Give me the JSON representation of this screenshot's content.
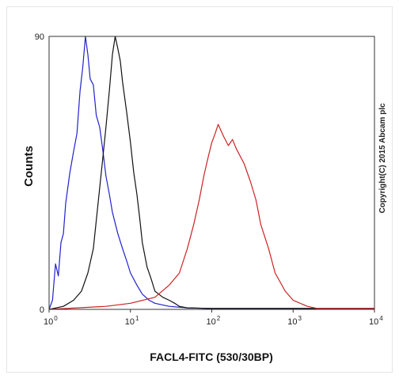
{
  "chart_data": {
    "type": "line",
    "title": "",
    "xlabel": "FACL4-FITC (530/30BP)",
    "ylabel": "Counts",
    "x_scale": "log",
    "xlim": [
      1,
      10000
    ],
    "ylim": [
      0,
      90
    ],
    "x_ticks": [
      {
        "base": "10",
        "exp": "0",
        "value": 1
      },
      {
        "base": "10",
        "exp": "1",
        "value": 10
      },
      {
        "base": "10",
        "exp": "2",
        "value": 100
      },
      {
        "base": "10",
        "exp": "3",
        "value": 1000
      },
      {
        "base": "10",
        "exp": "4",
        "value": 10000
      }
    ],
    "y_ticks": [
      {
        "label": "0",
        "value": 0
      },
      {
        "label": "90",
        "value": 90
      }
    ],
    "annotation": "Copyright(C) 2015 Abcam plc",
    "grid": false,
    "series": [
      {
        "color": "#2222cc",
        "x": [
          1.0,
          1.1,
          1.2,
          1.3,
          1.4,
          1.5,
          1.6,
          1.8,
          2.0,
          2.2,
          2.4,
          2.6,
          2.8,
          3.0,
          3.2,
          3.5,
          3.8,
          4.2,
          4.6,
          5.0,
          5.5,
          6.0,
          7.0,
          8.0,
          9.0,
          10.0,
          12.0,
          14.0,
          17.0,
          20.0,
          30.0,
          50.0,
          100.0,
          10000.0
        ],
        "y": [
          0,
          3,
          15,
          11,
          22,
          25,
          35,
          45,
          52,
          58,
          72,
          80,
          90,
          84,
          76,
          74,
          64,
          60,
          52,
          44,
          38,
          32,
          25,
          20,
          16,
          12,
          8,
          5,
          3,
          2,
          1,
          0.5,
          0.3,
          0.3
        ]
      },
      {
        "color": "#111111",
        "x": [
          1.0,
          1.5,
          2.0,
          2.5,
          3.0,
          3.5,
          4.0,
          4.5,
          5.0,
          5.5,
          6.0,
          6.5,
          7.0,
          7.5,
          8.0,
          9.0,
          10.0,
          11.0,
          12.0,
          13.0,
          14.0,
          16.0,
          18.0,
          20.0,
          25.0,
          30.0,
          35.0,
          40.0,
          50.0,
          100.0,
          10000.0
        ],
        "y": [
          0,
          1,
          3,
          6,
          12,
          20,
          35,
          48,
          60,
          72,
          84,
          90,
          86,
          82,
          75,
          65,
          55,
          45,
          38,
          30,
          22,
          14,
          10,
          6,
          4,
          3,
          2,
          1,
          0.5,
          0.3,
          0.3
        ]
      },
      {
        "color": "#cc2222",
        "x": [
          1.0,
          5.0,
          10.0,
          20.0,
          30.0,
          40.0,
          50.0,
          60.0,
          70.0,
          80.0,
          90.0,
          100.0,
          110.0,
          120.0,
          140.0,
          160.0,
          180.0,
          200.0,
          250.0,
          300.0,
          350.0,
          400.0,
          500.0,
          600.0,
          800.0,
          1000.0,
          1500.0,
          2000.0,
          10000.0
        ],
        "y": [
          0,
          1,
          2,
          4,
          8,
          12,
          20,
          28,
          36,
          44,
          50,
          55,
          58,
          61,
          57,
          54,
          56,
          53,
          48,
          42,
          36,
          28,
          20,
          12,
          6,
          3,
          1,
          0.3,
          0.3
        ]
      }
    ]
  }
}
